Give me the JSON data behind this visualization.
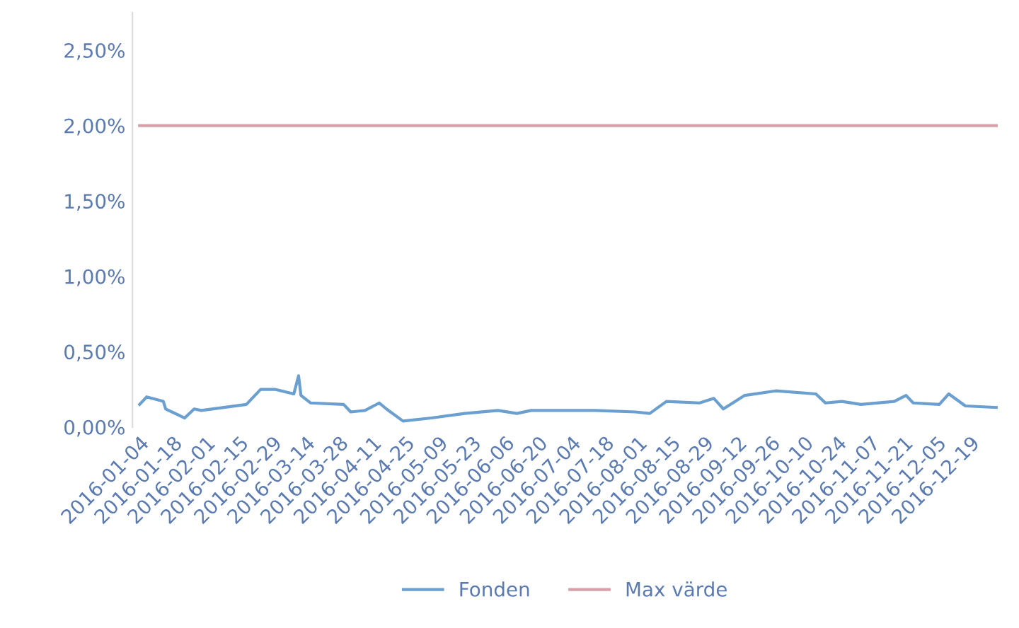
{
  "chart_data": {
    "type": "line",
    "legend": "bottom",
    "grid": false,
    "xlim": [
      "2016-01-01",
      "2016-12-31"
    ],
    "ylim": [
      0,
      2.75
    ],
    "yticks": [
      {
        "value": 0,
        "label": "0,00%"
      },
      {
        "value": 0.5,
        "label": "0,50%"
      },
      {
        "value": 1,
        "label": "1,00%"
      },
      {
        "value": 1.5,
        "label": "1,50%"
      },
      {
        "value": 2,
        "label": "2,00%"
      },
      {
        "value": 2.5,
        "label": "2,50%"
      }
    ],
    "xticks": [
      "2016-01-04",
      "2016-01-18",
      "2016-02-01",
      "2016-02-15",
      "2016-02-29",
      "2016-03-14",
      "2016-03-28",
      "2016-04-11",
      "2016-04-25",
      "2016-05-09",
      "2016-05-23",
      "2016-06-06",
      "2016-06-20",
      "2016-07-04",
      "2016-07-18",
      "2016-08-01",
      "2016-08-15",
      "2016-08-29",
      "2016-09-12",
      "2016-09-26",
      "2016-10-10",
      "2016-10-24",
      "2016-11-07",
      "2016-11-21",
      "2016-12-05",
      "2016-12-19"
    ],
    "series": [
      {
        "name": "Fonden",
        "color": "#6a9fd0",
        "x": [
          "2016-01-04",
          "2016-01-07",
          "2016-01-14",
          "2016-01-15",
          "2016-01-23",
          "2016-01-27",
          "2016-01-30",
          "2016-02-18",
          "2016-02-24",
          "2016-03-01",
          "2016-03-09",
          "2016-03-11",
          "2016-03-12",
          "2016-03-16",
          "2016-03-30",
          "2016-04-02",
          "2016-04-08",
          "2016-04-14",
          "2016-04-17",
          "2016-04-24",
          "2016-05-06",
          "2016-05-20",
          "2016-06-03",
          "2016-06-11",
          "2016-06-17",
          "2016-07-14",
          "2016-07-31",
          "2016-08-06",
          "2016-08-13",
          "2016-08-27",
          "2016-09-02",
          "2016-09-06",
          "2016-09-15",
          "2016-09-28",
          "2016-10-15",
          "2016-10-19",
          "2016-10-26",
          "2016-11-03",
          "2016-11-17",
          "2016-11-22",
          "2016-11-25",
          "2016-12-06",
          "2016-12-10",
          "2016-12-17",
          "2016-12-30"
        ],
        "values": [
          0.15,
          0.2,
          0.17,
          0.12,
          0.06,
          0.12,
          0.11,
          0.15,
          0.25,
          0.25,
          0.22,
          0.34,
          0.21,
          0.16,
          0.15,
          0.1,
          0.11,
          0.16,
          0.12,
          0.04,
          0.06,
          0.09,
          0.11,
          0.09,
          0.11,
          0.11,
          0.1,
          0.09,
          0.17,
          0.16,
          0.19,
          0.12,
          0.21,
          0.24,
          0.22,
          0.16,
          0.17,
          0.15,
          0.17,
          0.21,
          0.16,
          0.15,
          0.22,
          0.14,
          0.13
        ]
      },
      {
        "name": "Max värde",
        "color": "#d9a0aa",
        "x": [
          "2016-01-04",
          "2016-12-30"
        ],
        "values": [
          2.0,
          2.0
        ]
      }
    ]
  }
}
